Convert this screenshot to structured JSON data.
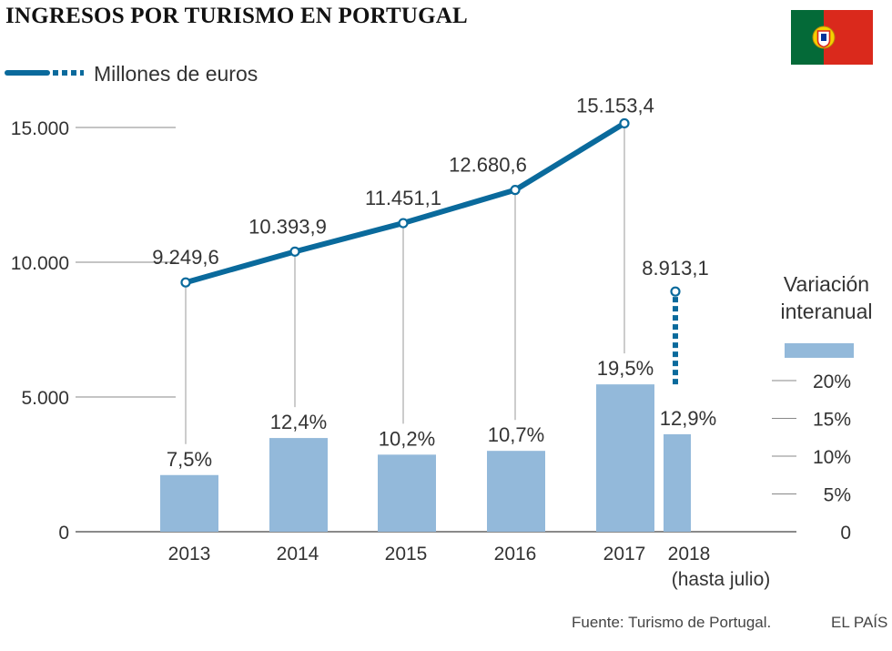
{
  "title": "INGRESOS POR TURISMO EN PORTUGAL",
  "source": "Fuente: Turismo de Portugal.",
  "brand": "EL PAÍS",
  "flag_icon": "portugal-flag-icon",
  "colors": {
    "line": "#0a6a9c",
    "bar": "#93b9da",
    "axis": "#444444",
    "flag_green": "#046a38",
    "flag_red": "#da291c"
  },
  "chart_data": {
    "type": "bar+line",
    "title": "INGRESOS POR TURISMO EN PORTUGAL",
    "legend_line": "Millones de euros",
    "legend_bar": [
      "Variación",
      "interanual"
    ],
    "categories": [
      "2013",
      "2014",
      "2015",
      "2016",
      "2017",
      "2018"
    ],
    "category_sublabels": [
      "",
      "",
      "",
      "",
      "",
      "(hasta julio)"
    ],
    "line": {
      "name": "Millones de euros",
      "values": [
        9249.6,
        10393.9,
        11451.1,
        12680.6,
        15153.4,
        8913.1
      ],
      "labels": [
        "9.249,6",
        "10.393,9",
        "11.451,1",
        "12.680,6",
        "15.153,4",
        "8.913,1"
      ],
      "dashed_from_index": 5
    },
    "bars": {
      "name": "Variación interanual",
      "values": [
        7.5,
        12.4,
        10.2,
        10.7,
        19.5,
        12.9
      ],
      "labels": [
        "7,5%",
        "12,4%",
        "10,2%",
        "10,7%",
        "19,5%",
        "12,9%"
      ]
    },
    "y_left": {
      "ylim": [
        0,
        15000
      ],
      "ticks": [
        0,
        5000,
        10000,
        15000
      ],
      "tick_labels": [
        "0",
        "5.000",
        "10.000",
        "15.000"
      ]
    },
    "y_right": {
      "ylim": [
        0,
        20
      ],
      "ticks": [
        0,
        5,
        10,
        15,
        20
      ],
      "tick_labels": [
        "0",
        "5%",
        "10%",
        "15%",
        "20%"
      ]
    }
  }
}
